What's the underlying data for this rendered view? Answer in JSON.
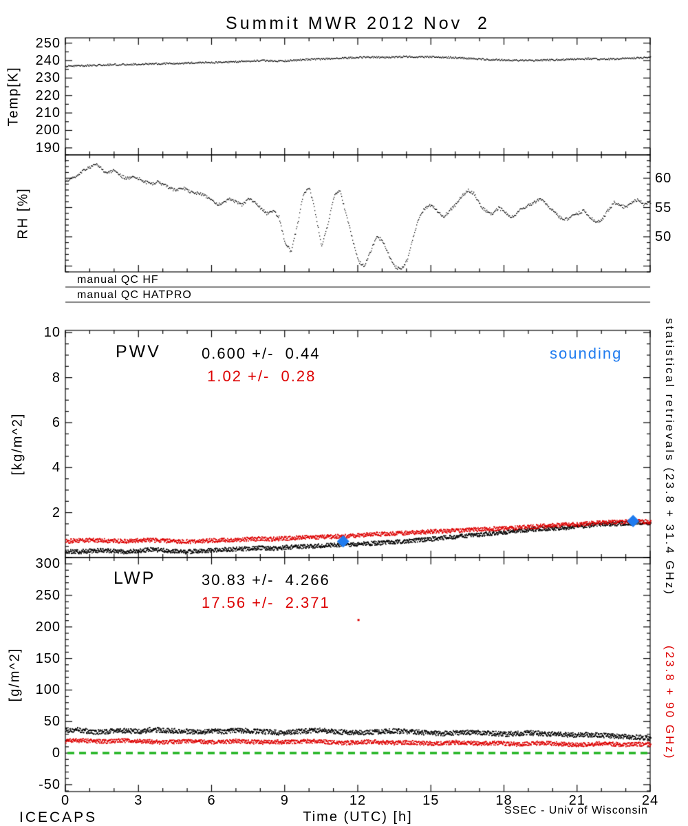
{
  "title": "Summit MWR 2012 Nov  2",
  "footer": {
    "left": "ICECAPS",
    "right": "SSEC - Univ of Wisconsin"
  },
  "x_axis": {
    "label": "Time (UTC) [h]",
    "min": 0,
    "max": 24,
    "ticks": [
      0,
      3,
      6,
      9,
      12,
      15,
      18,
      21,
      24
    ],
    "minor_step": 1
  },
  "qc_rows": [
    {
      "label": "manual QC HF"
    },
    {
      "label": "manual QC HATPRO"
    }
  ],
  "side_labels": {
    "black": "statistical retrievals (23.8 + 31.4 GHz)",
    "red": "(23.8 + 90 GHz)"
  },
  "colors": {
    "black": "#000000",
    "red": "#dd0000",
    "blue": "#1f7bef",
    "green": "#22b422"
  },
  "chart_data": [
    {
      "id": "temp",
      "type": "line",
      "ylabel": "Temp[K]",
      "ylim": [
        186,
        253
      ],
      "yticks": [
        190,
        200,
        210,
        220,
        230,
        240,
        250
      ],
      "ytick_side": "left",
      "ymajor": 10,
      "yminor": 5,
      "series": [
        {
          "name": "surface-temperature",
          "color": "black",
          "x_step": 0.5,
          "noise": 1.2,
          "dot": 1.3,
          "passes": 1,
          "values": [
            237.0,
            237.2,
            237.5,
            237.7,
            237.9,
            238.0,
            238.2,
            238.3,
            238.5,
            238.6,
            238.8,
            239.0,
            239.1,
            239.3,
            239.6,
            239.9,
            240.3,
            240.1,
            240.0,
            240.5,
            240.9,
            241.1,
            241.3,
            241.7,
            242.0,
            242.2,
            242.0,
            242.3,
            242.5,
            242.2,
            242.4,
            242.1,
            241.9,
            241.5,
            241.1,
            240.8,
            240.5,
            240.3,
            240.2,
            240.4,
            240.6,
            240.9,
            241.1,
            241.3,
            241.0,
            241.2,
            241.5,
            241.7,
            242.0
          ]
        }
      ]
    },
    {
      "id": "rh",
      "type": "line",
      "ylabel": "RH [%]",
      "ylim": [
        44,
        64
      ],
      "yticks": [
        50,
        55,
        60
      ],
      "ytick_side": "right",
      "ymajor": 5,
      "yminor": 1,
      "series": [
        {
          "name": "relative-humidity",
          "color": "black",
          "x_step": 0.25,
          "noise": 2.2,
          "dot": 1.3,
          "passes": 1,
          "values": [
            59.5,
            60.0,
            60.5,
            61.5,
            62.0,
            62.5,
            61.5,
            61.0,
            61.5,
            60.5,
            60.0,
            60.5,
            60.0,
            59.5,
            59.0,
            59.5,
            59.0,
            58.5,
            58.0,
            58.5,
            58.0,
            57.5,
            57.5,
            57.0,
            56.5,
            55.5,
            56.0,
            56.5,
            56.0,
            55.5,
            56.5,
            56.0,
            55.0,
            54.0,
            54.5,
            53.5,
            49.0,
            47.5,
            52.0,
            57.5,
            58.5,
            54.0,
            48.5,
            52.0,
            57.0,
            58.0,
            54.0,
            50.0,
            46.0,
            45.0,
            47.5,
            50.0,
            49.5,
            47.0,
            45.0,
            44.5,
            46.0,
            50.0,
            53.5,
            55.0,
            55.5,
            54.5,
            53.5,
            54.5,
            55.5,
            57.0,
            58.0,
            57.5,
            55.5,
            54.5,
            54.0,
            55.0,
            54.5,
            53.5,
            54.0,
            55.0,
            55.5,
            56.0,
            56.5,
            55.5,
            54.5,
            53.5,
            53.0,
            53.5,
            54.0,
            54.5,
            53.5,
            52.5,
            53.0,
            54.5,
            56.0,
            55.5,
            55.0,
            56.0,
            56.5,
            55.5,
            56.0
          ]
        }
      ]
    },
    {
      "id": "pwv",
      "type": "line",
      "ylabel": "[kg/m^2]",
      "ylim": [
        0,
        10.1
      ],
      "yticks": [
        2,
        4,
        6,
        8,
        10
      ],
      "ytick_side": "left",
      "ymajor": 2,
      "yminor": 0.5,
      "annotations": {
        "label": "PWV",
        "black_stats": "0.600 +/-  0.44",
        "red_stats": " 1.02 +/-  0.28",
        "sounding_label": "sounding"
      },
      "series": [
        {
          "name": "pwv-23.8-31.4",
          "color": "black",
          "x_step": 0.5,
          "noise": 3.0,
          "dot": 1.7,
          "passes": 2,
          "values": [
            0.3,
            0.28,
            0.32,
            0.35,
            0.3,
            0.28,
            0.33,
            0.38,
            0.35,
            0.3,
            0.28,
            0.32,
            0.35,
            0.38,
            0.4,
            0.42,
            0.45,
            0.43,
            0.48,
            0.5,
            0.52,
            0.55,
            0.58,
            0.6,
            0.62,
            0.65,
            0.68,
            0.72,
            0.75,
            0.8,
            0.85,
            0.9,
            0.95,
            1.0,
            1.05,
            1.1,
            1.15,
            1.2,
            1.25,
            1.3,
            1.32,
            1.35,
            1.4,
            1.45,
            1.5,
            1.52,
            1.55,
            1.58,
            1.55
          ]
        },
        {
          "name": "pwv-23.8-90",
          "color": "red",
          "x_step": 0.5,
          "noise": 3.0,
          "dot": 1.7,
          "passes": 2,
          "values": [
            0.75,
            0.78,
            0.8,
            0.78,
            0.76,
            0.75,
            0.78,
            0.8,
            0.78,
            0.75,
            0.74,
            0.76,
            0.78,
            0.8,
            0.82,
            0.84,
            0.86,
            0.85,
            0.88,
            0.9,
            0.92,
            0.94,
            0.96,
            0.98,
            1.0,
            1.05,
            1.08,
            1.1,
            1.12,
            1.15,
            1.18,
            1.2,
            1.22,
            1.25,
            1.28,
            1.3,
            1.32,
            1.35,
            1.38,
            1.42,
            1.45,
            1.48,
            1.5,
            1.55,
            1.58,
            1.6,
            1.62,
            1.63,
            1.6
          ]
        }
      ],
      "sounding_points": [
        {
          "t": 11.4,
          "v": 0.72
        },
        {
          "t": 23.3,
          "v": 1.62
        }
      ]
    },
    {
      "id": "lwp",
      "type": "line",
      "ylabel": "[g/m^2]",
      "ylim": [
        -61,
        310
      ],
      "yticks": [
        -50,
        0,
        50,
        100,
        150,
        200,
        250,
        300
      ],
      "ytick_side": "left",
      "ymajor": 50,
      "yminor": 10,
      "annotations": {
        "label": "LWP",
        "black_stats": "30.83 +/-  4.266",
        "red_stats": "17.56 +/-  2.371"
      },
      "series": [
        {
          "name": "lwp-23.8-31.4",
          "color": "black",
          "x_step": 0.5,
          "noise": 3.5,
          "dot": 1.7,
          "passes": 2,
          "values": [
            36,
            38,
            35,
            34,
            37,
            36,
            35,
            38,
            37,
            36,
            35,
            34,
            36,
            35,
            37,
            36,
            35,
            34,
            33,
            35,
            36,
            37,
            35,
            34,
            33,
            34,
            35,
            36,
            35,
            34,
            33,
            32,
            33,
            34,
            33,
            32,
            31,
            32,
            33,
            32,
            31,
            30,
            29,
            30,
            29,
            28,
            27,
            26,
            25
          ]
        },
        {
          "name": "lwp-23.8-90",
          "color": "red",
          "x_step": 0.5,
          "noise": 3.0,
          "dot": 1.7,
          "passes": 2,
          "values": [
            20,
            21,
            20,
            19,
            20,
            21,
            20,
            19,
            18,
            19,
            20,
            19,
            18,
            19,
            20,
            19,
            18,
            19,
            18,
            19,
            20,
            19,
            18,
            17,
            18,
            19,
            18,
            17,
            18,
            17,
            16,
            17,
            18,
            17,
            16,
            17,
            16,
            15,
            16,
            17,
            16,
            15,
            14,
            15,
            16,
            15,
            14,
            15,
            15
          ]
        }
      ],
      "zero_line": {
        "color": "green",
        "value": 0,
        "style": "dashed"
      },
      "outliers": [
        {
          "t": 12.03,
          "v": 211,
          "color": "red"
        }
      ]
    }
  ]
}
